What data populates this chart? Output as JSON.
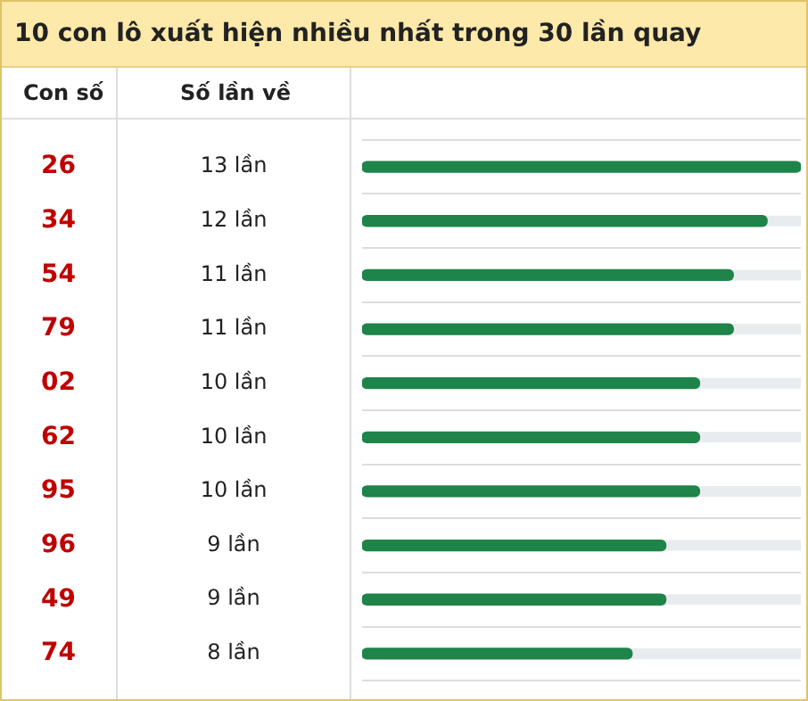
{
  "chart_data": {
    "type": "bar",
    "orientation": "horizontal",
    "title": "10 con lô xuất hiện nhiều nhất trong 30 lần quay",
    "ylabel": "Con số",
    "annotations": [
      "Số lần về"
    ],
    "categories": [
      "26",
      "34",
      "54",
      "79",
      "02",
      "62",
      "95",
      "96",
      "49",
      "74"
    ],
    "values": [
      13,
      12,
      11,
      11,
      10,
      10,
      10,
      9,
      9,
      8
    ],
    "value_labels": [
      "13 lần",
      "12 lần",
      "11 lần",
      "11 lần",
      "10 lần",
      "10 lần",
      "10 lần",
      "9 lần",
      "9 lần",
      "8 lần"
    ],
    "color": "#1e8449",
    "grid": "y",
    "legend": false
  }
}
